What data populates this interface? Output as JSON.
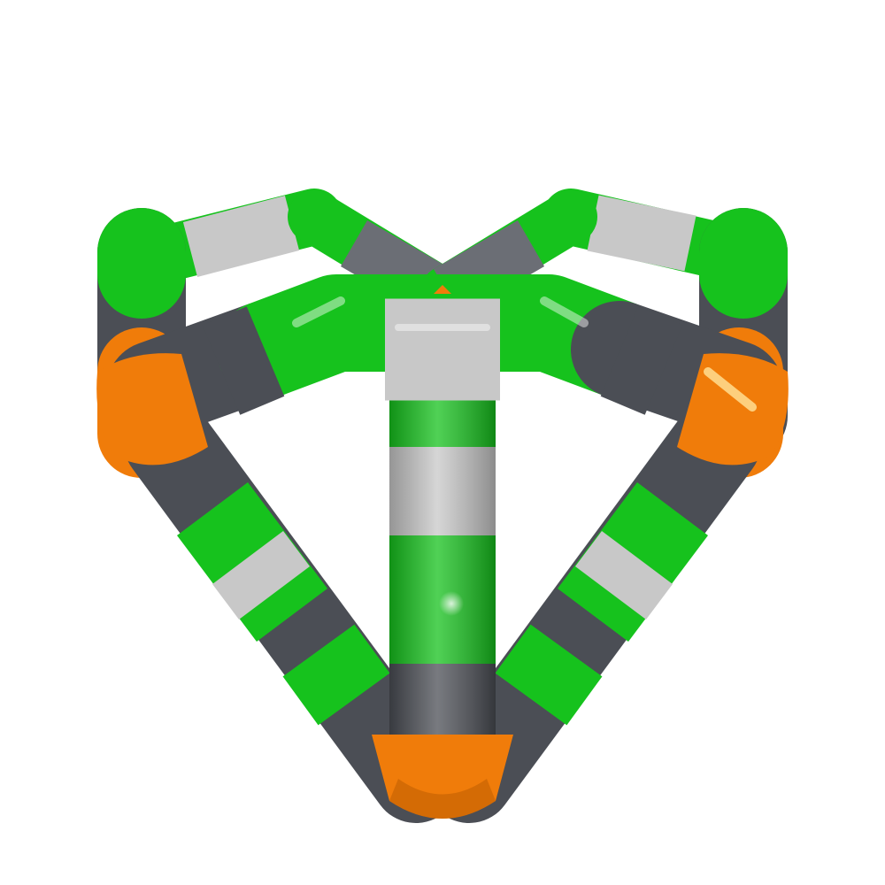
{
  "scene": {
    "background": "#ffffff",
    "subject": "tube-molecule-cage",
    "colors": {
      "green": "#16c21d",
      "green_dark": "#0a8f10",
      "gray_light": "#c8c8c8",
      "gray_dark": "#4b4e55",
      "gray_mid": "#6b6e75",
      "orange": "#f07c0a",
      "orange_dark": "#b85a00"
    }
  }
}
